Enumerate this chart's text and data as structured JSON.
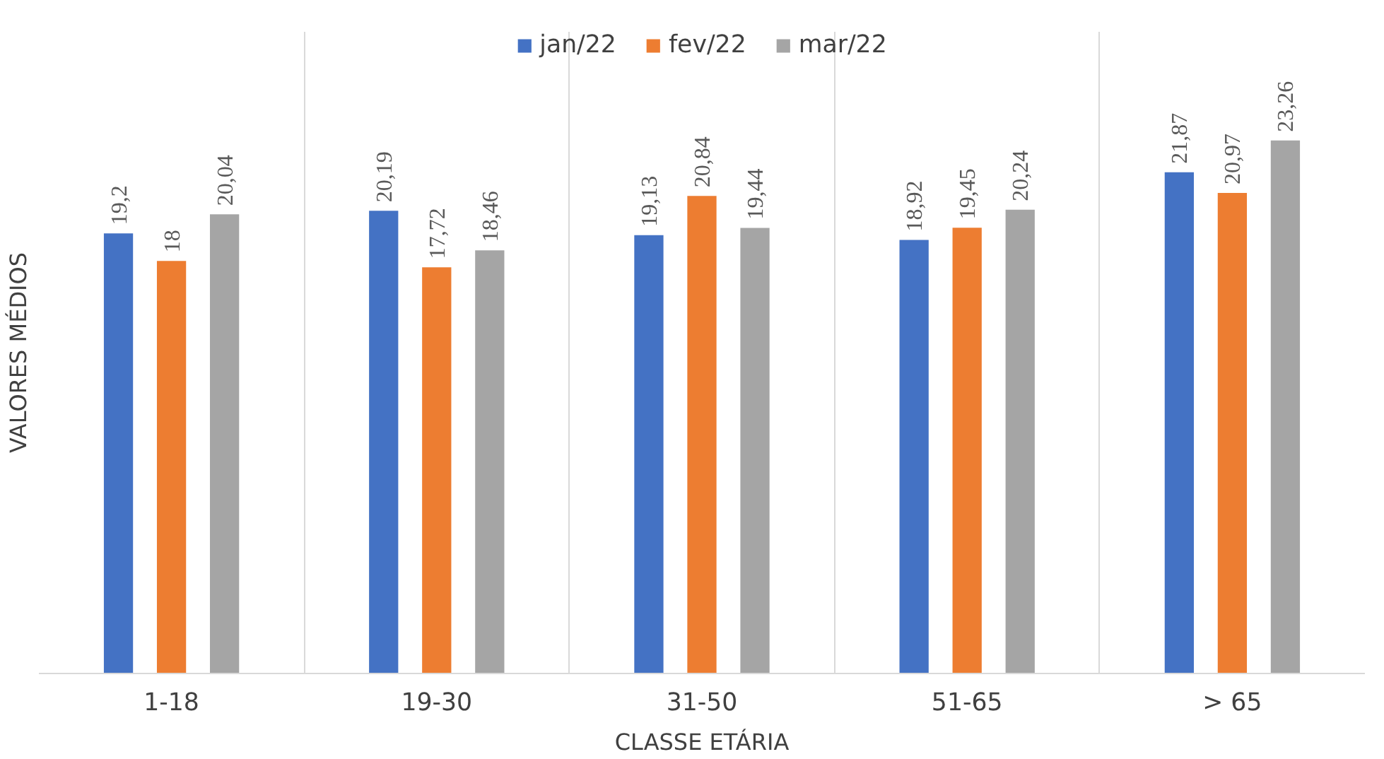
{
  "chart_data": {
    "type": "bar",
    "xlabel": "CLASSE ETÁRIA",
    "ylabel": "VALORES MÉDIOS",
    "categories": [
      "1-18",
      "19-30",
      "31-50",
      "51-65",
      "> 65"
    ],
    "series": [
      {
        "name": "jan/22",
        "color": "#4472c4",
        "values": [
          19.2,
          20.19,
          19.13,
          18.92,
          21.87
        ],
        "value_labels": [
          "19,2",
          "20,19",
          "19,13",
          "18,92",
          "21,87"
        ]
      },
      {
        "name": "fev/22",
        "color": "#ed7d31",
        "values": [
          18,
          17.72,
          20.84,
          19.45,
          20.97
        ],
        "value_labels": [
          "18",
          "17,72",
          "20,84",
          "19,45",
          "20,97"
        ]
      },
      {
        "name": "mar/22",
        "color": "#a5a5a5",
        "values": [
          20.04,
          18.46,
          19.44,
          20.24,
          23.26
        ],
        "value_labels": [
          "20,04",
          "18,46",
          "19,44",
          "20,24",
          "23,26"
        ]
      }
    ],
    "ylim": [
      0,
      28
    ],
    "grid": "x",
    "legend": "top",
    "tick_labels": "x"
  }
}
